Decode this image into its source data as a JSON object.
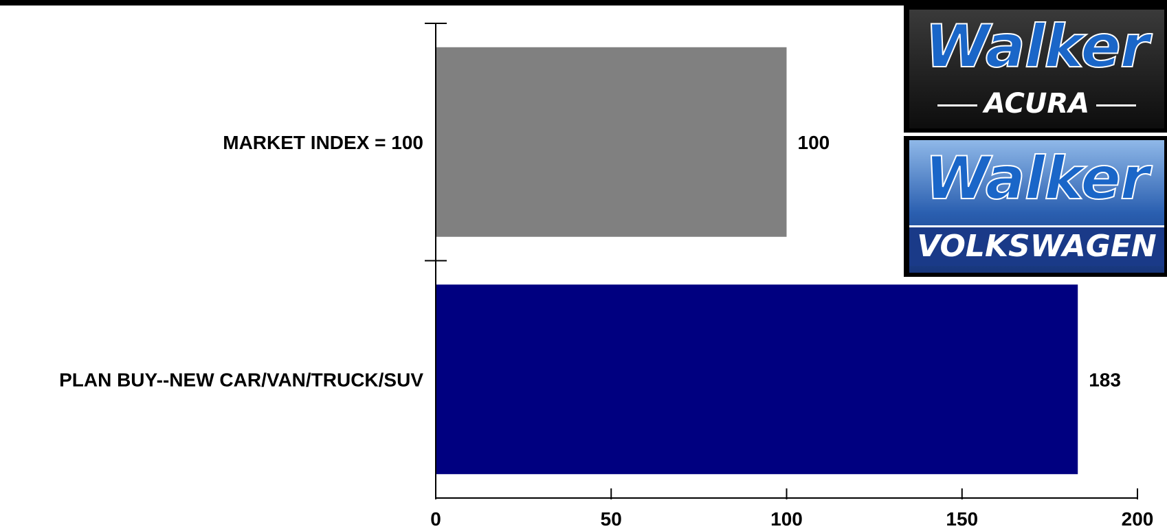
{
  "chart_data": {
    "type": "bar",
    "orientation": "horizontal",
    "categories": [
      "MARKET INDEX = 100",
      "PLAN BUY--NEW CAR/VAN/TRUCK/SUV"
    ],
    "values": [
      100,
      183
    ],
    "value_labels": [
      "100",
      "183"
    ],
    "bar_colors": [
      "#808080",
      "#000080"
    ],
    "xlim": [
      0,
      200
    ],
    "x_ticks": [
      0,
      50,
      100,
      150,
      200
    ],
    "x_tick_labels": [
      "0",
      "50",
      "100",
      "150",
      "200"
    ],
    "grid": false,
    "legend": "none"
  },
  "logos": {
    "acura": {
      "brand": "Walker",
      "sub": "ACURA",
      "bg": "#1c1c1c"
    },
    "volkswagen": {
      "brand": "Walker",
      "sub": "VOLKSWAGEN",
      "bg": "#1f3f8f"
    }
  },
  "colors": {
    "top_bar": "#000000",
    "axis": "#000000",
    "logo_blue": "#1a66c8"
  }
}
